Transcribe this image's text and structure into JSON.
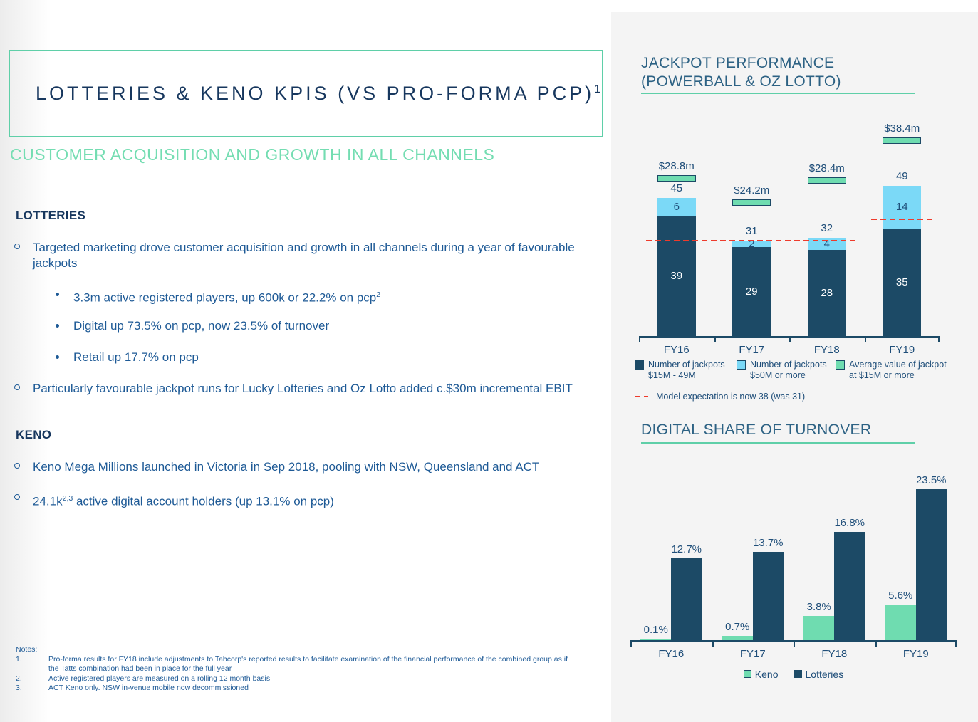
{
  "slide": {
    "title": "LOTTERIES & KENO KPIS (VS PRO-FORMA PCP)",
    "title_sup": "1",
    "subtitle": "CUSTOMER ACQUISITION AND GROWTH IN ALL CHANNELS"
  },
  "lotteries_section": {
    "heading": "LOTTERIES",
    "bullet1": "Targeted marketing drove customer acquisition and growth in all channels during a year of favourable jackpots",
    "sub_bullets": [
      {
        "text": "3.3m active registered players, up 600k or 22.2% on pcp",
        "sup": "2"
      },
      {
        "text": "Digital up 73.5% on pcp, now 23.5% of turnover",
        "sup": ""
      },
      {
        "text": "Retail up 17.7% on pcp",
        "sup": ""
      }
    ],
    "bullet2": "Particularly favourable jackpot runs for Lucky Lotteries and Oz Lotto added c.$30m incremental EBIT"
  },
  "keno_section": {
    "heading": "KENO",
    "bullet1": "Keno Mega Millions launched in Victoria in Sep 2018, pooling with NSW, Queensland and ACT",
    "bullet2_lead": "24.1k",
    "bullet2_sup": "2,3",
    "bullet2_tail": " active digital account holders (up 13.1% on pcp)"
  },
  "notes": {
    "title": "Notes:",
    "items": [
      {
        "num": "1.",
        "text": "Pro-forma results for FY18 include adjustments to Tabcorp's reported results to facilitate examination of the financial performance of the combined group as if the Tatts combination had been in place for the full year"
      },
      {
        "num": "2.",
        "text": "Active registered players are measured on a rolling 12 month basis"
      },
      {
        "num": "3.",
        "text": "ACT Keno only. NSW in-venue mobile now decommissioned"
      }
    ]
  },
  "colors": {
    "accent_teal": "#5FCFA8",
    "subtitle_teal": "#74DDB2",
    "heading_navy": "#17375E",
    "body_blue": "#1E5A96",
    "chart_header_blue": "#2D6284",
    "navy_bar": "#1C4A66",
    "light_blue_bar": "#7BD9F7",
    "green_bar": "#6FDCB0",
    "model_red": "#EE3B2C",
    "panel_gray": "#F4F4F4"
  },
  "chart_data": [
    {
      "type": "bar",
      "variant": "stacked",
      "title": "JACKPOT PERFORMANCE (POWERBALL & OZ LOTTO)",
      "title_line1": "JACKPOT PERFORMANCE",
      "title_line2": "(POWERBALL & OZ LOTTO)",
      "categories": [
        "FY16",
        "FY17",
        "FY18",
        "FY19"
      ],
      "series": [
        {
          "name": "Number of jackpots $15M - 49M",
          "legend_line1": "Number of jackpots",
          "legend_line2": "$15M - 49M",
          "color": "#1C4A66",
          "values": [
            39,
            29,
            28,
            35
          ]
        },
        {
          "name": "Number of jackpots $50M or more",
          "legend_line1": "Number of jackpots",
          "legend_line2": "$50M or more",
          "color": "#7BD9F7",
          "values": [
            6,
            2,
            4,
            14
          ]
        }
      ],
      "totals": [
        45,
        31,
        32,
        49
      ],
      "average_jackpot_value": {
        "name": "Average value of jackpot at $15M or more",
        "legend_line1": "Average value of jackpot",
        "legend_line2": "at $15M or more",
        "color": "#6FDCB0",
        "labels": [
          "$28.8m",
          "$24.2m",
          "$28.4m",
          "$38.4m"
        ],
        "values_m": [
          28.8,
          24.2,
          28.4,
          38.4
        ]
      },
      "model_expectation": {
        "label": "Model expectation is now 38 (was 31)",
        "was": 31,
        "now": 38,
        "color": "#EE3B2C"
      },
      "ylim": [
        0,
        52
      ],
      "grid": false,
      "legend_position": "bottom"
    },
    {
      "type": "bar",
      "variant": "grouped",
      "title": "DIGITAL SHARE OF TURNOVER",
      "categories": [
        "FY16",
        "FY17",
        "FY18",
        "FY19"
      ],
      "series": [
        {
          "name": "Keno",
          "color": "#6FDCB0",
          "values": [
            0.1,
            0.7,
            3.8,
            5.6
          ],
          "labels": [
            "0.1%",
            "0.7%",
            "3.8%",
            "5.6%"
          ]
        },
        {
          "name": "Lotteries",
          "color": "#1C4A66",
          "values": [
            12.7,
            13.7,
            16.8,
            23.5
          ],
          "labels": [
            "12.7%",
            "13.7%",
            "16.8%",
            "23.5%"
          ]
        }
      ],
      "ylim": [
        0,
        25
      ],
      "grid": false,
      "legend_position": "bottom"
    }
  ]
}
